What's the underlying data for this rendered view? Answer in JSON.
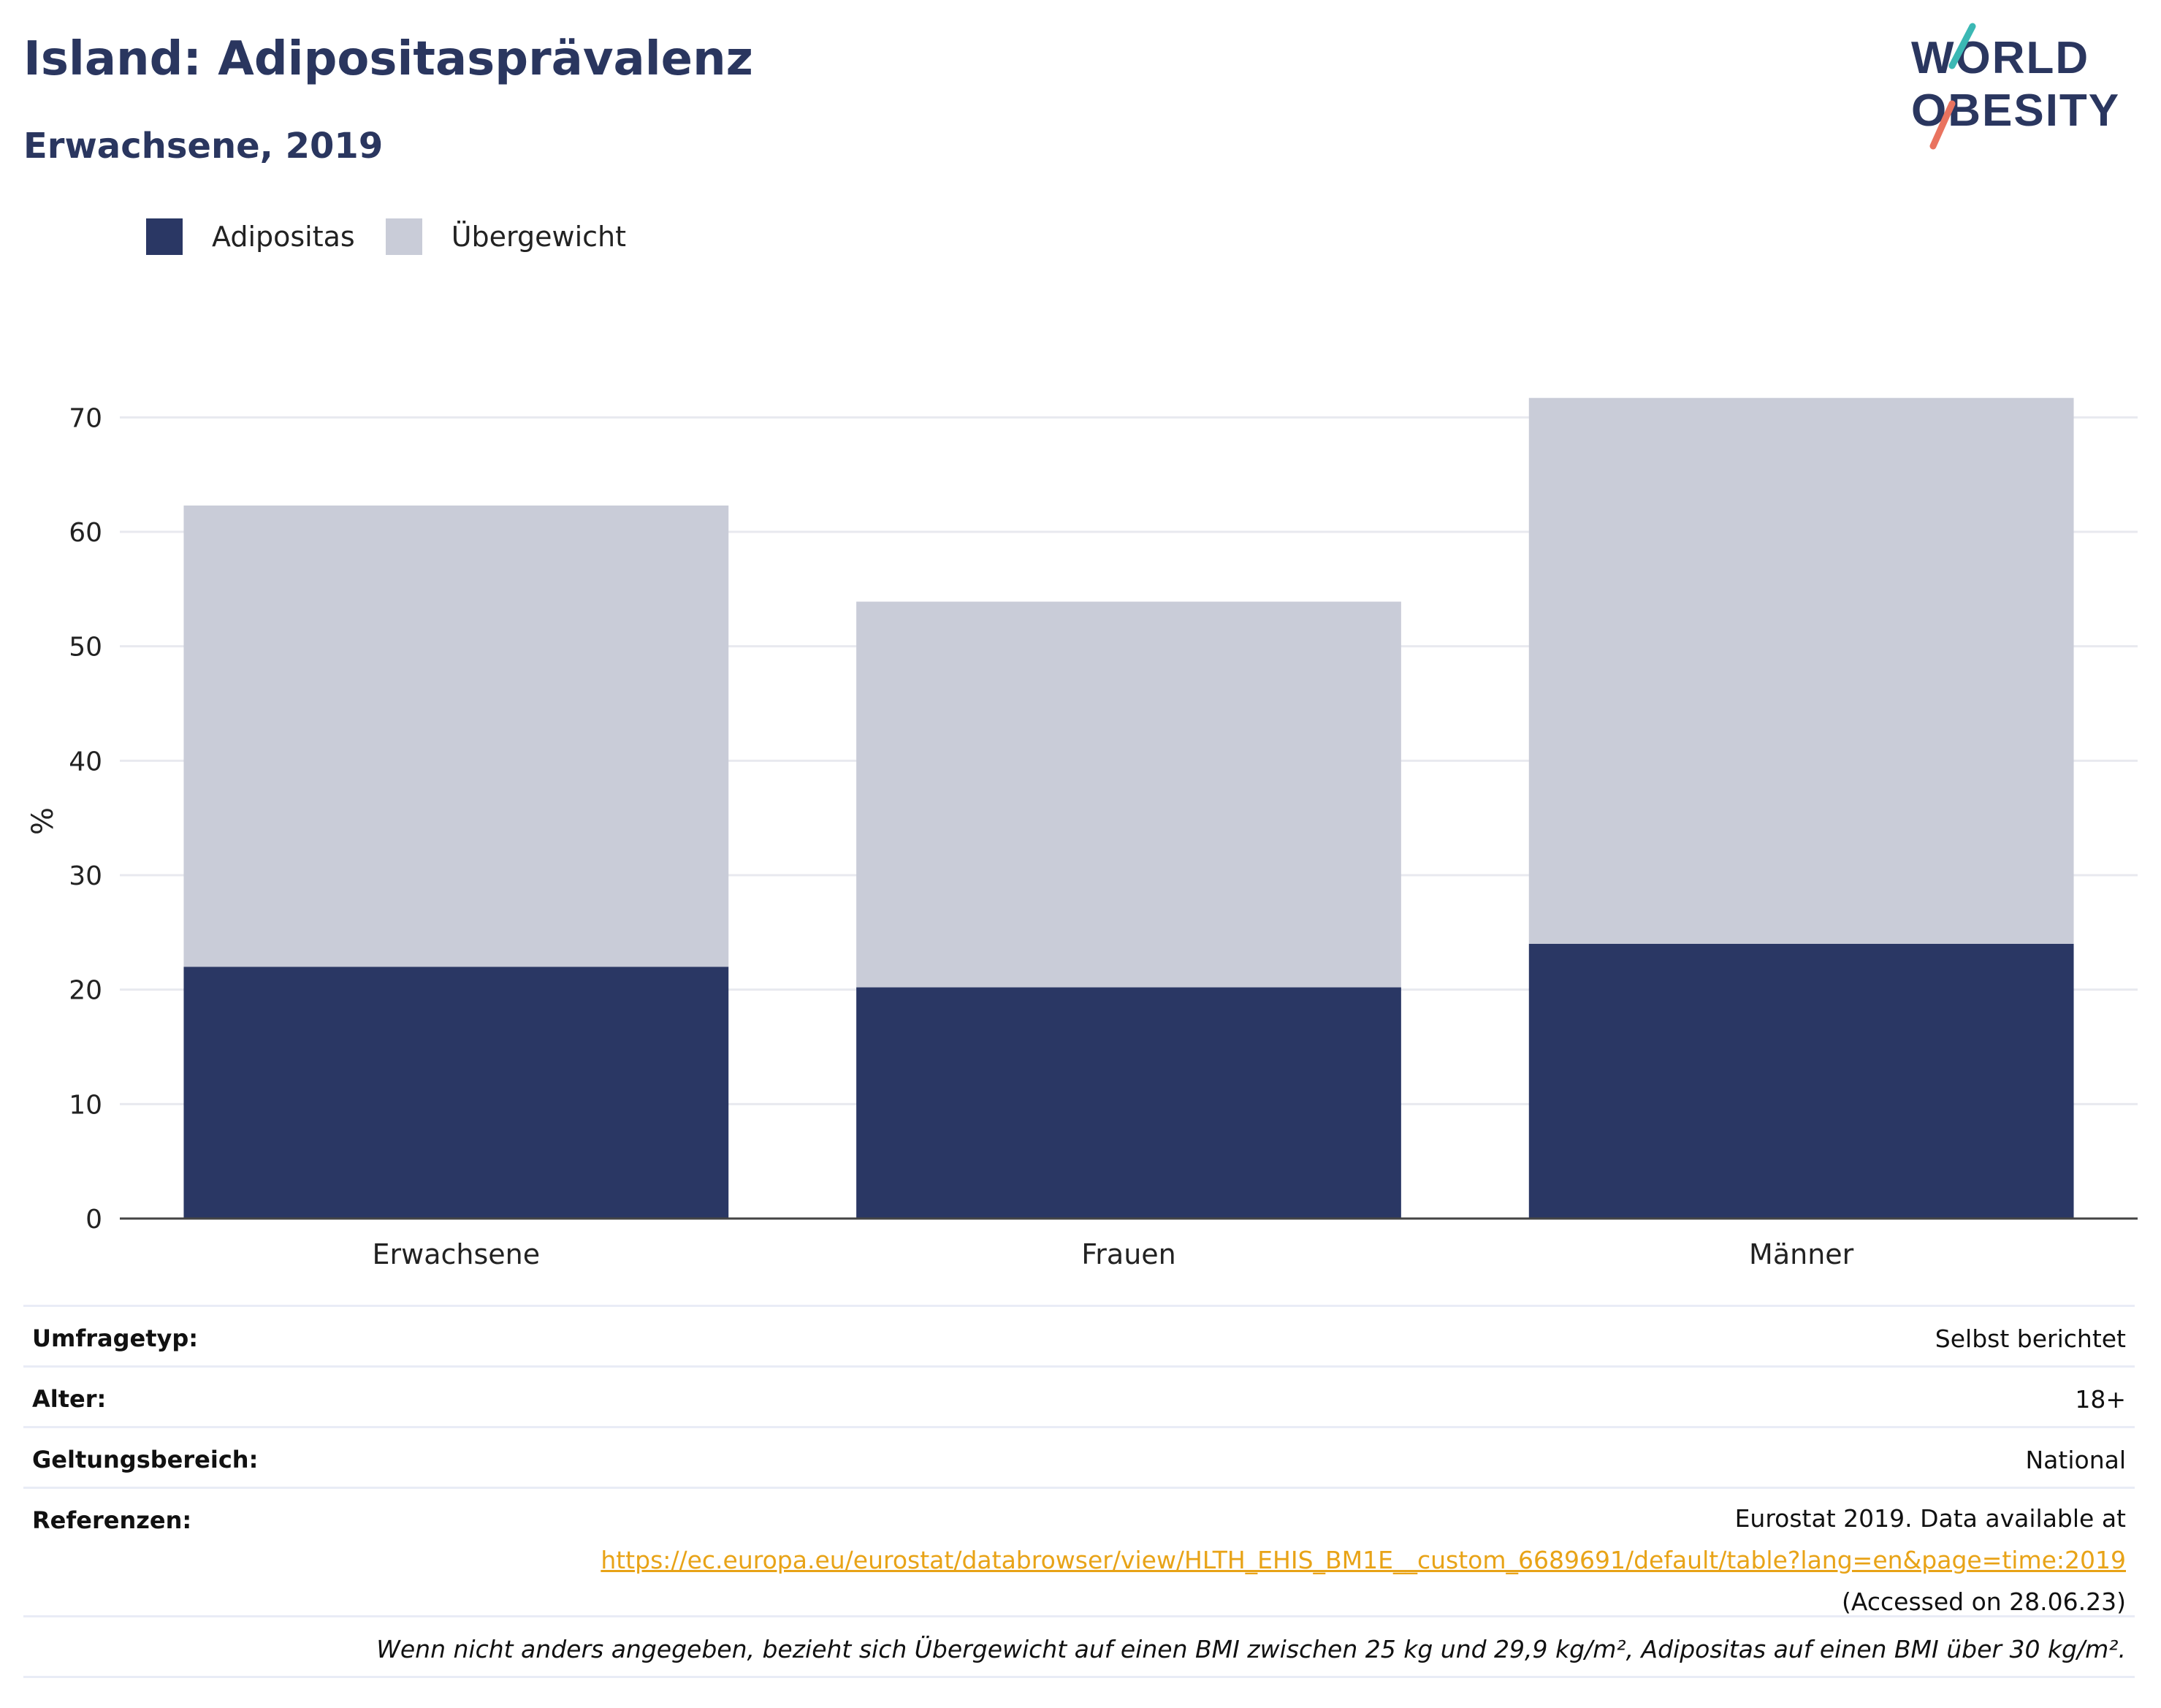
{
  "title": "Island: Adipositasprävalenz",
  "subtitle": "Erwachsene, 2019",
  "logo": {
    "line1": "WORLD",
    "line2": "OBESITY"
  },
  "colors": {
    "obesity": "#2a3764",
    "overweight": "#c9ccd8",
    "title": "#2a365f",
    "link": "#e8a317"
  },
  "legend": [
    {
      "label": "Adipositas",
      "color": "#2a3764"
    },
    {
      "label": "Übergewicht",
      "color": "#c9ccd8"
    }
  ],
  "chart_data": {
    "type": "bar",
    "stacked": true,
    "categories": [
      "Erwachsene",
      "Frauen",
      "Männer"
    ],
    "series": [
      {
        "name": "Adipositas",
        "values": [
          22.0,
          20.2,
          24.0
        ]
      },
      {
        "name": "Übergewicht",
        "values": [
          40.3,
          33.7,
          47.7
        ]
      }
    ],
    "ylabel": "%",
    "ylim": [
      0,
      72
    ],
    "yticks": [
      0,
      10,
      20,
      30,
      40,
      50,
      60,
      70
    ],
    "grid": true,
    "legend_position": "top-left"
  },
  "info": {
    "survey_type": {
      "label": "Umfragetyp:",
      "value": "Selbst berichtet"
    },
    "age": {
      "label": "Alter:",
      "value": "18+"
    },
    "scope": {
      "label": "Geltungsbereich:",
      "value": "National"
    },
    "references": {
      "label": "Referenzen:",
      "line1": "Eurostat 2019. Data available at",
      "link": "https://ec.europa.eu/eurostat/databrowser/view/HLTH_EHIS_BM1E__custom_6689691/default/table?lang=en&page=time:2019",
      "line3": "(Accessed on 28.06.23)"
    },
    "note": "Wenn nicht anders angegeben, bezieht sich Übergewicht auf einen BMI zwischen 25 kg und 29,9 kg/m², Adipositas auf einen BMI über 30 kg/m²."
  }
}
